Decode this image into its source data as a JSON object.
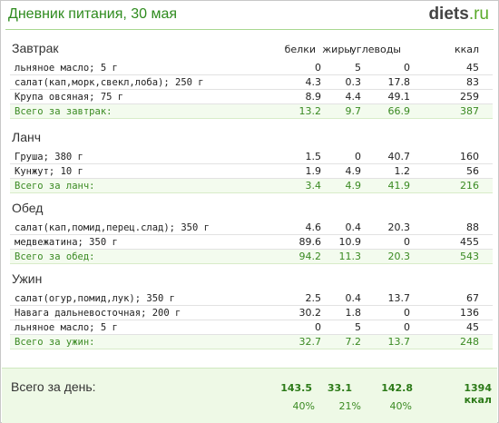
{
  "header": {
    "title": "Дневник питания, 30 мая",
    "logo_part1": "diets",
    "logo_part2": ".ru"
  },
  "columns": [
    "белки",
    "жиры",
    "углеводы",
    "ккал"
  ],
  "meals": [
    {
      "title": "Завтрак",
      "items": [
        {
          "name": "льняное масло; 5 г",
          "protein": "0",
          "fat": "5",
          "carbs": "0",
          "kcal": "45"
        },
        {
          "name": "салат(кап,морк,свекл,лоба); 250 г",
          "protein": "4.3",
          "fat": "0.3",
          "carbs": "17.8",
          "kcal": "83"
        },
        {
          "name": "Крупа овсяная; 75 г",
          "protein": "8.9",
          "fat": "4.4",
          "carbs": "49.1",
          "kcal": "259"
        }
      ],
      "total": {
        "name": "Всего за завтрак:",
        "protein": "13.2",
        "fat": "9.7",
        "carbs": "66.9",
        "kcal": "387"
      }
    },
    {
      "title": "Ланч",
      "items": [
        {
          "name": "Груша; 380 г",
          "protein": "1.5",
          "fat": "0",
          "carbs": "40.7",
          "kcal": "160"
        },
        {
          "name": "Кунжут; 10 г",
          "protein": "1.9",
          "fat": "4.9",
          "carbs": "1.2",
          "kcal": "56"
        }
      ],
      "total": {
        "name": "Всего за ланч:",
        "protein": "3.4",
        "fat": "4.9",
        "carbs": "41.9",
        "kcal": "216"
      }
    },
    {
      "title": "Обед",
      "items": [
        {
          "name": "салат(кап,помид,перец.слад); 350 г",
          "protein": "4.6",
          "fat": "0.4",
          "carbs": "20.3",
          "kcal": "88"
        },
        {
          "name": "медвежатина; 350 г",
          "protein": "89.6",
          "fat": "10.9",
          "carbs": "0",
          "kcal": "455"
        }
      ],
      "total": {
        "name": "Всего за обед:",
        "protein": "94.2",
        "fat": "11.3",
        "carbs": "20.3",
        "kcal": "543"
      }
    },
    {
      "title": "Ужин",
      "items": [
        {
          "name": "салат(огур,помид,лук); 350 г",
          "protein": "2.5",
          "fat": "0.4",
          "carbs": "13.7",
          "kcal": "67"
        },
        {
          "name": "Навага дальневосточная; 200 г",
          "protein": "30.2",
          "fat": "1.8",
          "carbs": "0",
          "kcal": "136"
        },
        {
          "name": "льняное масло; 5 г",
          "protein": "0",
          "fat": "5",
          "carbs": "0",
          "kcal": "45"
        }
      ],
      "total": {
        "name": "Всего за ужин:",
        "protein": "32.7",
        "fat": "7.2",
        "carbs": "13.7",
        "kcal": "248"
      }
    }
  ],
  "day_total": {
    "label": "Всего за день:",
    "protein": "143.5",
    "fat": "33.1",
    "carbs": "142.8",
    "kcal": "1394 ккал",
    "protein_pct": "40%",
    "fat_pct": "21%",
    "carbs_pct": "40%"
  }
}
